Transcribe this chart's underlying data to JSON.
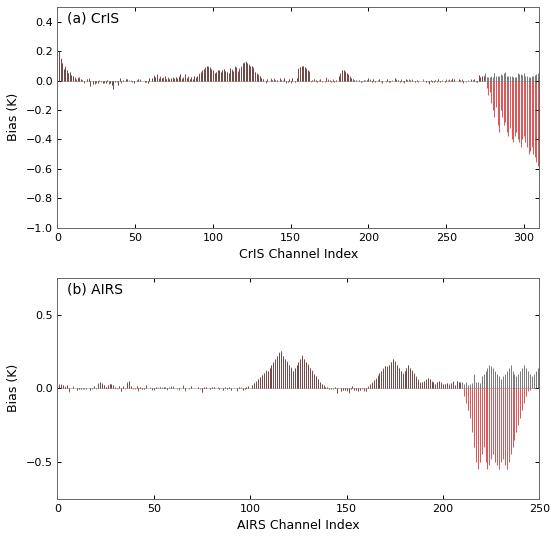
{
  "panel_a_title": "(a) CrIS",
  "panel_b_title": "(b) AIRS",
  "panel_a_xlabel": "CrIS Channel Index",
  "panel_b_xlabel": "AIRS Channel Index",
  "ylabel": "Bias (K)",
  "panel_a_xlim": [
    0,
    310
  ],
  "panel_b_xlim": [
    0,
    250
  ],
  "panel_a_ylim": [
    -1.0,
    0.5
  ],
  "panel_b_ylim": [
    -0.75,
    0.75
  ],
  "panel_a_yticks": [
    -1.0,
    -0.8,
    -0.6,
    -0.4,
    -0.2,
    0.0,
    0.2,
    0.4
  ],
  "panel_b_yticks": [
    -0.5,
    0.0,
    0.5
  ],
  "panel_a_xticks": [
    0,
    50,
    100,
    150,
    200,
    250,
    300
  ],
  "panel_b_xticks": [
    0,
    50,
    100,
    150,
    200,
    250
  ],
  "color_control": "#444444",
  "color_experiment": "#cc1111",
  "linewidth": 0.5,
  "bg_color": "#ffffff",
  "title_fontsize": 10,
  "label_fontsize": 9,
  "tick_fontsize": 8
}
